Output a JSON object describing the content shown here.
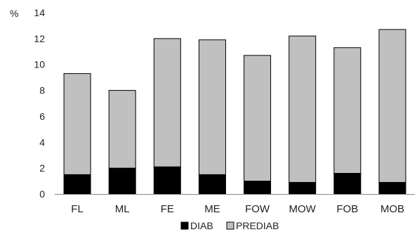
{
  "chart_data": {
    "type": "bar",
    "stacked": true,
    "ylabel": "%",
    "ylim": [
      0,
      14
    ],
    "yticks": [
      0,
      2,
      4,
      6,
      8,
      10,
      12,
      14
    ],
    "categories": [
      "FL",
      "ML",
      "FE",
      "ME",
      "FOW",
      "MOW",
      "FOB",
      "MOB"
    ],
    "series": [
      {
        "name": "DIAB",
        "color": "#000000",
        "values": [
          1.5,
          2.0,
          2.1,
          1.5,
          1.0,
          0.9,
          1.6,
          0.9
        ]
      },
      {
        "name": "PREDIAB",
        "color": "#c0c0c0",
        "values": [
          7.8,
          6.0,
          9.9,
          10.4,
          9.7,
          11.3,
          9.7,
          11.8
        ]
      }
    ],
    "grid": false,
    "legend": "bottom-center"
  }
}
